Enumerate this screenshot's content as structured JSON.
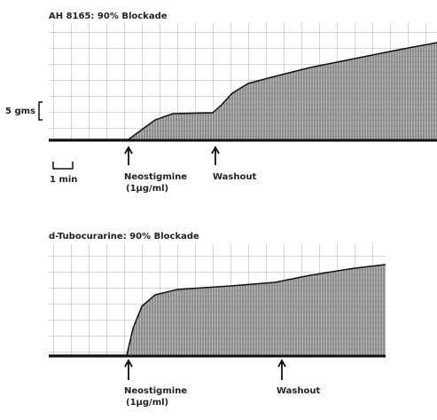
{
  "panels": [
    {
      "title": "AH 8165: 90% Blockade",
      "scale_label": "5 gms",
      "time_label": "1 min",
      "annotations": [
        {
          "label": "Neostigmine",
          "sublabel": "(1μg/ml)"
        },
        {
          "label": "Washout"
        }
      ]
    },
    {
      "title": "d-Tubocurarine: 90% Blockade",
      "annotations": [
        {
          "label": "Neostigmine",
          "sublabel": "(1μg/ml)"
        },
        {
          "label": "Washout"
        }
      ]
    }
  ]
}
